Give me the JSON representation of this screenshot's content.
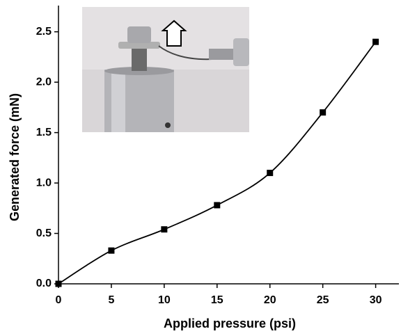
{
  "chart_data": {
    "type": "line",
    "x_label": "Applied pressure (psi)",
    "y_label": "Generated force (mN)",
    "x": [
      0,
      5,
      10,
      15,
      20,
      25,
      30
    ],
    "series": [
      {
        "color": "#000000",
        "values": [
          0,
          0.33,
          0.54,
          0.78,
          1.1,
          1.7,
          2.4
        ]
      }
    ],
    "xlim": [
      0,
      32.2
    ],
    "ylim": [
      0,
      2.76
    ],
    "xticks": [
      0,
      5,
      10,
      15,
      20,
      25,
      30
    ],
    "yticks": [
      {
        "value": 0,
        "label": "0.0"
      },
      0.5,
      {
        "value": 1,
        "label": "1.0"
      },
      1.5,
      {
        "value": 2,
        "label": "2.0"
      },
      2.5
    ],
    "smooth": true,
    "marker": "square",
    "grid": false
  }
}
